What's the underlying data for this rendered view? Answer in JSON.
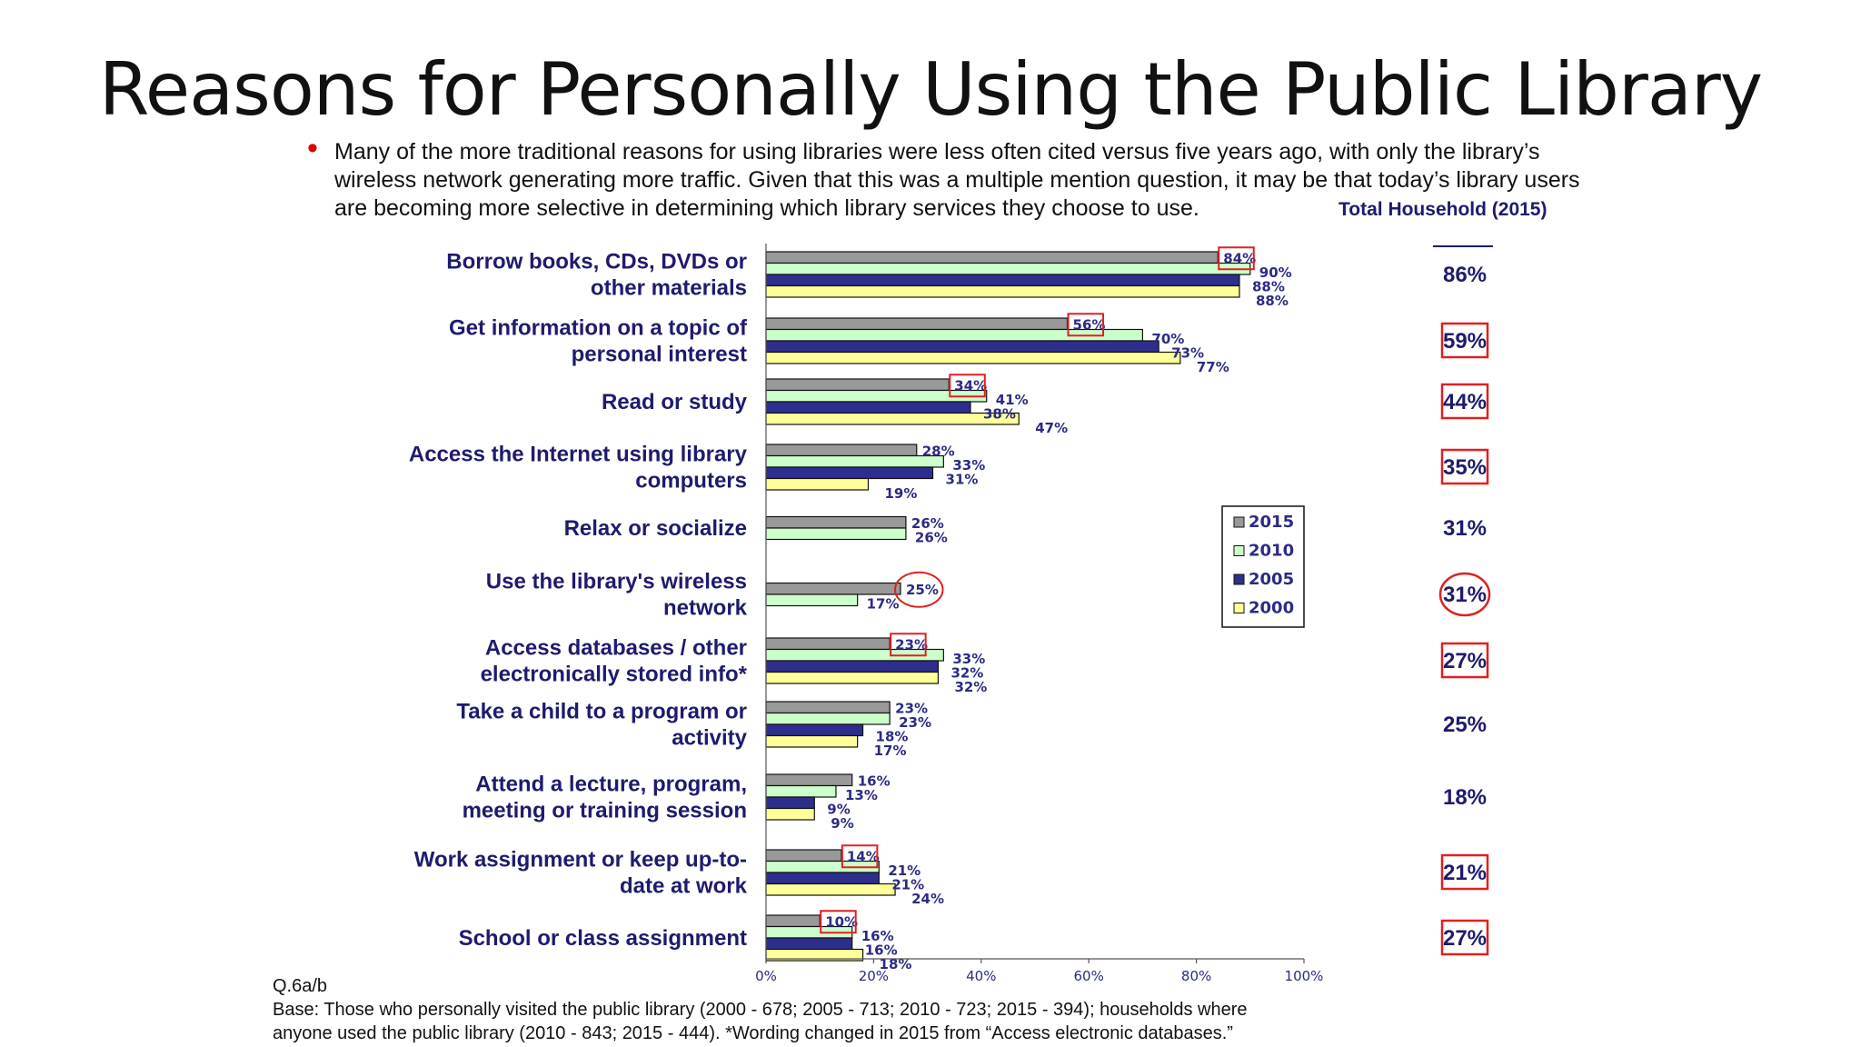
{
  "title": "Reasons for Personally Using the Public Library",
  "bullet": "Many of the more traditional reasons for using libraries were less often cited versus five years ago, with only the library’s wireless network generating more traffic.  Given that this was a multiple mention question, it may be that today’s library users are becoming more selective in determining which library services they choose to use.",
  "total_household_label": "Total Household (2015)",
  "footnote": {
    "line1": "Q.6a/b",
    "line2": "Base:  Those who personally visited the public library (2000 - 678; 2005 - 713; 2010 - 723; 2015 - 394); households where",
    "line3": "anyone used the public library (2010 - 843; 2015 - 444). *Wording changed in 2015 from “Access electronic databases.”"
  },
  "colors": {
    "2015": "#999999",
    "2010": "#ccffcc",
    "2005": "#2e2e8f",
    "2000": "#ffff99",
    "highlight": "#e02020",
    "text_navy": "#1e1b6e"
  },
  "chart_data": {
    "type": "bar",
    "orientation": "horizontal",
    "xlim": [
      0,
      100
    ],
    "x_ticks": [
      "0%",
      "20%",
      "40%",
      "60%",
      "80%",
      "100%"
    ],
    "legend": {
      "position": "right",
      "entries": [
        "2015",
        "2010",
        "2005",
        "2000"
      ]
    },
    "categories": [
      {
        "label": [
          "Borrow books, CDs, DVDs or",
          "other materials"
        ],
        "values": {
          "2015": 84,
          "2010": 90,
          "2005": 88,
          "2000": 88
        },
        "total_household": "86%",
        "highlight_2015": "box",
        "highlight_total": "none"
      },
      {
        "label": [
          "Get information on a topic of",
          "personal interest"
        ],
        "values": {
          "2015": 56,
          "2010": 70,
          "2005": 73,
          "2000": 77
        },
        "total_household": "59%",
        "highlight_2015": "box",
        "highlight_total": "box"
      },
      {
        "label": [
          "Read or study"
        ],
        "values": {
          "2015": 34,
          "2010": 41,
          "2005": 38,
          "2000": 47
        },
        "total_household": "44%",
        "highlight_2015": "box",
        "highlight_total": "box"
      },
      {
        "label": [
          "Access the Internet using library",
          "computers"
        ],
        "values": {
          "2015": 28,
          "2010": 33,
          "2005": 31,
          "2000": 19
        },
        "total_household": "35%",
        "highlight_2015": "none",
        "highlight_total": "box"
      },
      {
        "label": [
          "Relax or socialize"
        ],
        "values": {
          "2015": 26,
          "2010": 26
        },
        "total_household": "31%",
        "highlight_2015": "none",
        "highlight_total": "none"
      },
      {
        "label": [
          "Use the library's wireless",
          "network"
        ],
        "values": {
          "2015": 25,
          "2010": 17
        },
        "total_household": "31%",
        "highlight_2015": "circle",
        "highlight_total": "circle"
      },
      {
        "label": [
          "Access databases / other",
          "electronically stored info*"
        ],
        "values": {
          "2015": 23,
          "2010": 33,
          "2005": 32,
          "2000": 32
        },
        "total_household": "27%",
        "highlight_2015": "box",
        "highlight_total": "box"
      },
      {
        "label": [
          "Take a child to a program or",
          "activity"
        ],
        "values": {
          "2015": 23,
          "2010": 23,
          "2005": 18,
          "2000": 17
        },
        "total_household": "25%",
        "highlight_2015": "none",
        "highlight_total": "none"
      },
      {
        "label": [
          "Attend a lecture, program,",
          "meeting or training session"
        ],
        "values": {
          "2015": 16,
          "2010": 13,
          "2005": 9,
          "2000": 9
        },
        "total_household": "18%",
        "highlight_2015": "none",
        "highlight_total": "none"
      },
      {
        "label": [
          "Work assignment or keep up-to-",
          "date at work"
        ],
        "values": {
          "2015": 14,
          "2010": 21,
          "2005": 21,
          "2000": 24
        },
        "total_household": "21%",
        "highlight_2015": "box",
        "highlight_total": "box"
      },
      {
        "label": [
          "School or class assignment"
        ],
        "values": {
          "2015": 10,
          "2010": 16,
          "2005": 16,
          "2000": 18
        },
        "total_household": "27%",
        "highlight_2015": "box",
        "highlight_total": "box"
      }
    ]
  }
}
